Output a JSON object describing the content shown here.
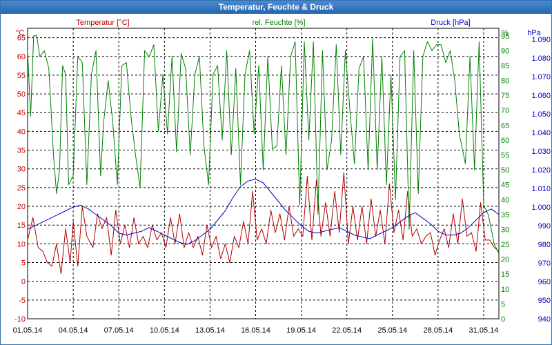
{
  "window": {
    "title": "Temperatur, Feuchte & Druck"
  },
  "chart_data": {
    "type": "line",
    "title": "Temperatur, Feuchte & Druck",
    "x": {
      "tick_labels": [
        "01.05.14",
        "04.05.14",
        "07.05.14",
        "10.05.14",
        "13.05.14",
        "16.05.14",
        "19.05.14",
        "22.05.14",
        "25.05.14",
        "28.05.14",
        "31.05.14"
      ],
      "range_days": [
        1,
        32
      ]
    },
    "axes": {
      "temperature": {
        "unit": "°C",
        "range": [
          -10,
          67.5
        ],
        "ticks": [
          -10,
          -5,
          0,
          5,
          10,
          15,
          20,
          25,
          30,
          35,
          40,
          45,
          50,
          55,
          60,
          65
        ],
        "color": "#c00000"
      },
      "humidity": {
        "unit": "%",
        "range": [
          0,
          97.5
        ],
        "ticks": [
          0,
          5,
          10,
          15,
          20,
          25,
          30,
          35,
          40,
          45,
          50,
          55,
          60,
          65,
          70,
          75,
          80,
          85,
          90,
          95
        ],
        "color": "#008000"
      },
      "pressure": {
        "unit": "hPa",
        "range": [
          940,
          1096
        ],
        "ticks": [
          "940",
          "950",
          "960",
          "970",
          "980",
          "990",
          "1.000",
          "1.010",
          "1.020",
          "1.030",
          "1.040",
          "1.050",
          "1.060",
          "1.070",
          "1.080",
          "1.090"
        ],
        "tick_values": [
          940,
          950,
          960,
          970,
          980,
          990,
          1000,
          1010,
          1020,
          1030,
          1040,
          1050,
          1060,
          1070,
          1080,
          1090
        ],
        "color": "#0000c0"
      }
    },
    "grid": true,
    "legend": "top",
    "series": [
      {
        "name": "Temperatur [°C]",
        "axis": "temperature",
        "color": "#b00000",
        "x": [
          1.0,
          1.35,
          1.7,
          2.0,
          2.3,
          2.6,
          2.9,
          3.2,
          3.5,
          3.8,
          4.0,
          4.3,
          4.6,
          4.9,
          5.3,
          5.6,
          5.9,
          6.2,
          6.5,
          6.8,
          7.1,
          7.4,
          7.7,
          8.0,
          8.3,
          8.6,
          8.9,
          9.2,
          9.5,
          9.8,
          10.1,
          10.4,
          10.7,
          11.0,
          11.3,
          11.6,
          11.9,
          12.2,
          12.5,
          12.8,
          13.1,
          13.4,
          13.7,
          14.0,
          14.3,
          14.6,
          14.9,
          15.2,
          15.5,
          15.8,
          16.1,
          16.4,
          16.7,
          17.0,
          17.3,
          17.6,
          17.9,
          18.2,
          18.5,
          18.8,
          19.1,
          19.4,
          19.7,
          20.0,
          20.3,
          20.6,
          20.9,
          21.2,
          21.5,
          21.8,
          22.1,
          22.4,
          22.7,
          23.0,
          23.3,
          23.6,
          23.9,
          24.2,
          24.5,
          24.8,
          25.1,
          25.4,
          25.7,
          26.0,
          26.3,
          26.6,
          26.9,
          27.2,
          27.5,
          27.8,
          28.1,
          28.4,
          28.7,
          29.0,
          29.3,
          29.6,
          29.9,
          30.2,
          30.5,
          30.8,
          31.1,
          31.4,
          31.7,
          32.0
        ],
        "y": [
          11,
          17,
          9,
          8,
          5,
          4,
          10,
          2,
          14,
          5,
          16,
          4,
          20,
          12,
          9,
          18,
          14,
          17,
          7,
          19,
          10,
          15,
          9,
          17,
          10,
          12,
          9,
          15,
          11,
          13,
          9,
          17,
          10,
          18,
          9,
          13,
          9,
          12,
          7,
          15,
          9,
          12,
          6,
          10,
          5,
          12,
          9,
          16,
          10,
          24,
          11,
          14,
          10,
          19,
          13,
          18,
          11,
          20,
          12,
          14,
          12,
          28,
          11,
          27,
          12,
          21,
          12,
          24,
          13,
          29,
          10,
          20,
          11,
          20,
          10,
          22,
          12,
          19,
          10,
          26,
          13,
          19,
          11,
          24,
          12,
          14,
          10,
          12,
          13,
          7,
          11,
          14,
          9,
          18,
          10,
          22,
          12,
          13,
          8,
          21,
          11,
          11,
          9,
          8
        ]
      },
      {
        "name": "rel. Feuchte [%]",
        "axis": "humidity",
        "color": "#008000",
        "x": [
          1.0,
          1.2,
          1.4,
          1.6,
          1.8,
          2.1,
          2.4,
          2.7,
          2.9,
          3.1,
          3.3,
          3.5,
          3.7,
          4.0,
          4.3,
          4.6,
          4.9,
          5.2,
          5.5,
          5.8,
          6.0,
          6.3,
          6.6,
          6.9,
          7.2,
          7.5,
          7.8,
          8.1,
          8.4,
          8.7,
          9.0,
          9.3,
          9.6,
          9.9,
          10.2,
          10.5,
          10.8,
          11.1,
          11.4,
          11.7,
          12.0,
          12.3,
          12.6,
          12.9,
          13.2,
          13.5,
          13.8,
          14.1,
          14.4,
          14.7,
          15.0,
          15.3,
          15.6,
          15.9,
          16.2,
          16.5,
          16.8,
          17.1,
          17.4,
          17.7,
          18.0,
          18.3,
          18.6,
          18.9,
          19.2,
          19.5,
          19.8,
          20.1,
          20.4,
          20.7,
          21.0,
          21.3,
          21.6,
          21.9,
          22.2,
          22.5,
          22.8,
          23.1,
          23.4,
          23.7,
          24.0,
          24.3,
          24.6,
          24.9,
          25.2,
          25.5,
          25.8,
          26.1,
          26.4,
          26.7,
          27.0,
          27.3,
          27.6,
          27.9,
          28.2,
          28.5,
          28.8,
          29.1,
          29.4,
          29.8,
          30.1,
          30.4,
          30.7,
          31.0,
          31.3,
          31.5,
          31.7,
          32.0
        ],
        "y": [
          90,
          68,
          95,
          95,
          88,
          90,
          84,
          55,
          42,
          50,
          85,
          82,
          45,
          48,
          88,
          86,
          45,
          82,
          90,
          48,
          66,
          80,
          66,
          45,
          85,
          86,
          68,
          55,
          44,
          90,
          88,
          92,
          63,
          82,
          62,
          88,
          56,
          89,
          84,
          55,
          82,
          88,
          58,
          45,
          82,
          85,
          60,
          90,
          55,
          84,
          45,
          82,
          90,
          62,
          85,
          50,
          88,
          57,
          58,
          85,
          55,
          88,
          93,
          38,
          93,
          60,
          93,
          35,
          90,
          50,
          60,
          92,
          55,
          90,
          70,
          52,
          84,
          88,
          50,
          94,
          50,
          88,
          45,
          82,
          40,
          88,
          90,
          30,
          90,
          42,
          88,
          93,
          90,
          92,
          92,
          86,
          90,
          80,
          62,
          52,
          88,
          50,
          93,
          38,
          35,
          30,
          25,
          22
        ]
      },
      {
        "name": "Druck [hPa]",
        "axis": "pressure",
        "color": "#0000c0",
        "x": [
          1.0,
          1.5,
          2.0,
          2.5,
          3.0,
          3.5,
          4.0,
          4.5,
          5.0,
          5.5,
          6.0,
          6.5,
          7.0,
          7.5,
          8.0,
          8.5,
          9.0,
          9.5,
          10.0,
          10.5,
          11.0,
          11.5,
          12.0,
          12.5,
          13.0,
          13.5,
          14.0,
          14.5,
          15.0,
          15.5,
          16.0,
          16.5,
          17.0,
          17.5,
          18.0,
          18.5,
          19.0,
          19.5,
          20.0,
          20.5,
          21.0,
          21.5,
          22.0,
          22.5,
          23.0,
          23.5,
          24.0,
          24.5,
          25.0,
          25.5,
          26.0,
          26.5,
          27.0,
          27.5,
          28.0,
          28.5,
          29.0,
          29.5,
          30.0,
          30.5,
          31.0,
          31.5,
          32.0
        ],
        "y": [
          988,
          990,
          992,
          994,
          996,
          998,
          1000,
          1001,
          999,
          996,
          993,
          990,
          986,
          985,
          986,
          987,
          989,
          987,
          985,
          983,
          981,
          980,
          982,
          985,
          988,
          993,
          998,
          1005,
          1011,
          1014,
          1015,
          1013,
          1008,
          1003,
          998,
          994,
          990,
          987,
          986,
          987,
          988,
          989,
          987,
          985,
          984,
          983,
          985,
          987,
          989,
          992,
          995,
          997,
          994,
          991,
          987,
          985,
          985,
          986,
          989,
          993,
          997,
          999,
          996
        ]
      }
    ]
  }
}
